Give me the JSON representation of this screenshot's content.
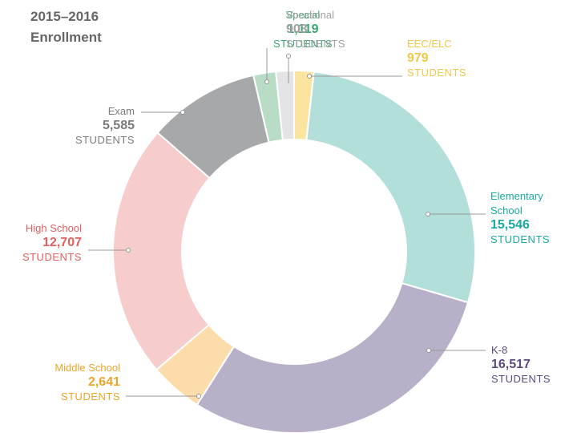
{
  "chart_data": {
    "type": "donut",
    "title": [
      "2015–2016",
      "Enrollment"
    ],
    "unit": "STUDENTS",
    "categories": [
      "EEC/ELC",
      "Elementary School",
      "K-8",
      "Middle School",
      "High School",
      "Exam",
      "Special",
      "Vocational"
    ],
    "values": [
      979,
      15546,
      16517,
      2641,
      12707,
      5585,
      1119,
      903
    ],
    "value_labels": [
      "979",
      "15,546",
      "16,517",
      "2,641",
      "12,707",
      "5,585",
      "1,119",
      "903"
    ],
    "colors": [
      "#f9e4a0",
      "#b3dfdb",
      "#b8b0c8",
      "#fbdcaa",
      "#f6cccc",
      "#a7a8aa",
      "#b9dcc6",
      "#e4e4e6"
    ],
    "label_colors": [
      "#f0c94a",
      "#1aa9a0",
      "#5c4a7f",
      "#eaa52a",
      "#e06060",
      "#7a7a7a",
      "#3aa870",
      "#a0a0a0"
    ]
  }
}
